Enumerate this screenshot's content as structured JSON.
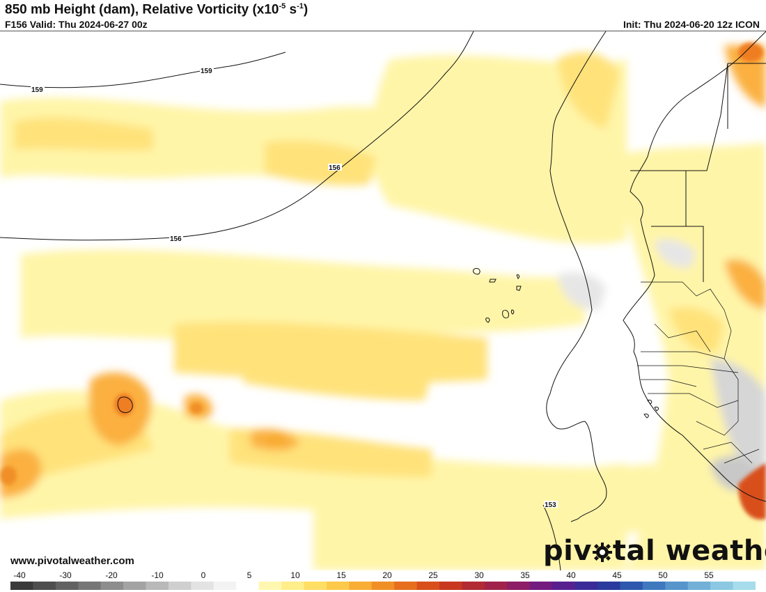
{
  "header": {
    "title_main": "850 mb Height (dam), Relative Vorticity (x10",
    "title_exp1": "-5",
    "title_mid": " s",
    "title_exp2": "-1",
    "title_end": ")",
    "valid": "F156 Valid: Thu 2024-06-27 00z",
    "init": "Init: Thu 2024-06-20 12z ICON"
  },
  "map": {
    "contour_labels": [
      "159",
      "159",
      "156",
      "156",
      "153"
    ],
    "colors": {
      "land_line": "#111111",
      "contour": "#111111",
      "light_yellow": "#fff5a8",
      "yellow": "#ffe27a",
      "orange": "#fbb040",
      "dark_orange": "#ef7d22",
      "red_orange": "#d9501a",
      "light_gray": "#e6e6e6",
      "gray": "#c8c8c8"
    }
  },
  "footer": {
    "site_url": "www.pivotalweather.com",
    "brand_a": "piv",
    "brand_b": "tal weather",
    "brand_icon": "gear-icon"
  },
  "colorbar": {
    "ticks": [
      "-40",
      "-30",
      "-20",
      "-10",
      "0",
      "5",
      "10",
      "15",
      "20",
      "25",
      "30",
      "35",
      "40",
      "45",
      "50",
      "55"
    ],
    "stops": [
      "#3a3a3a",
      "#4e4e4e",
      "#626262",
      "#777777",
      "#8d8d8d",
      "#a3a3a3",
      "#b9b9b9",
      "#cfcfcf",
      "#e3e3e3",
      "#f3f3f3",
      "#ffffff",
      "#fff7b0",
      "#ffee8a",
      "#ffdf63",
      "#fdc94a",
      "#f8ad35",
      "#f08f26",
      "#e66e1d",
      "#d84f1c",
      "#c8381f",
      "#b22a32",
      "#a0224a",
      "#8c1d66",
      "#731b7f",
      "#58208f",
      "#3b2a99",
      "#2a3a9e",
      "#2d58ad",
      "#3f78bd",
      "#5795cb",
      "#72b0d7",
      "#8cc8e2",
      "#a6dceb"
    ]
  }
}
